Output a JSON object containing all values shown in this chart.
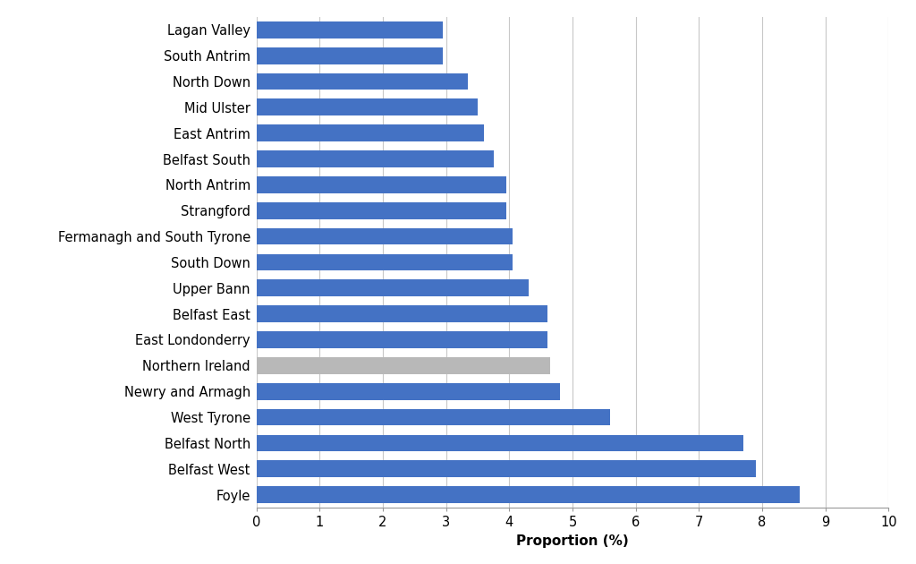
{
  "categories": [
    "Foyle",
    "Belfast West",
    "Belfast North",
    "West Tyrone",
    "Newry and Armagh",
    "Northern Ireland",
    "East Londonderry",
    "Belfast East",
    "Upper Bann",
    "South Down",
    "Fermanagh and South Tyrone",
    "Strangford",
    "North Antrim",
    "Belfast South",
    "East Antrim",
    "Mid Ulster",
    "North Down",
    "South Antrim",
    "Lagan Valley"
  ],
  "values": [
    8.6,
    7.9,
    7.7,
    5.6,
    4.8,
    4.65,
    4.6,
    4.6,
    4.3,
    4.05,
    4.05,
    3.95,
    3.95,
    3.75,
    3.6,
    3.5,
    3.35,
    2.95,
    2.95
  ],
  "bar_color_blue": "#4472C4",
  "bar_color_grey": "#B8B8B8",
  "special_index": 5,
  "xlabel": "Proportion (%)",
  "xlim": [
    0,
    10
  ],
  "xticks": [
    0,
    1,
    2,
    3,
    4,
    5,
    6,
    7,
    8,
    9,
    10
  ],
  "grid_color": "#C8C8C8",
  "background_color": "#FFFFFF",
  "bar_height": 0.65,
  "label_fontsize": 11,
  "tick_fontsize": 10.5,
  "ylabel_fontsize": 11
}
